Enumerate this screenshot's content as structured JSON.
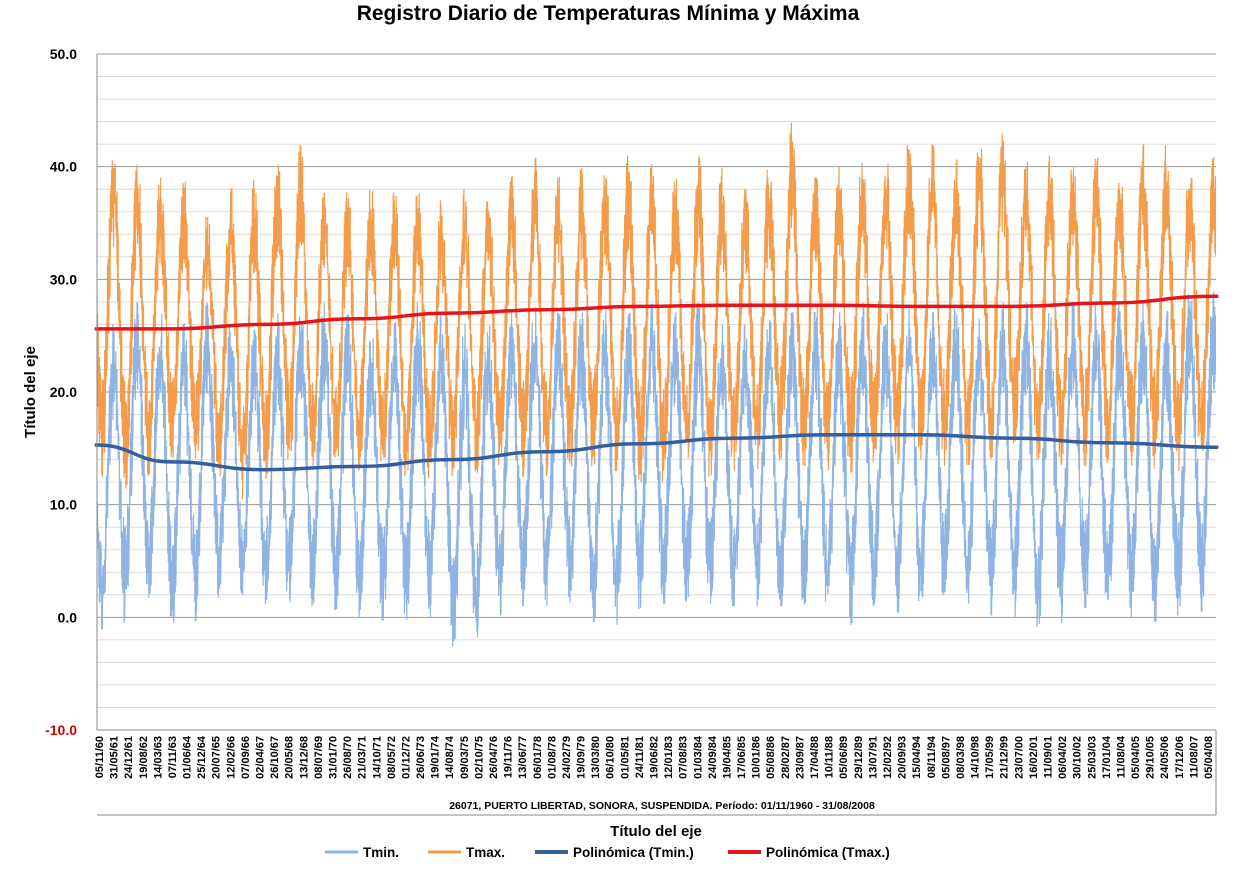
{
  "chart_data": {
    "type": "line",
    "title": "Registro Diario de Temperaturas Mínima y Máxima",
    "subtitle": "26071, PUERTO LIBERTAD, SONORA, SUSPENDIDA. Período: 01/11/1960 - 31/08/2008",
    "xlabel": "Título del eje",
    "ylabel": "Título del eje",
    "ylim": [
      -10,
      50
    ],
    "yticks": [
      "-10.0",
      "0.0",
      "10.0",
      "20.0",
      "30.0",
      "40.0",
      "50.0"
    ],
    "xlim": [
      "01/11/1960",
      "31/08/2008"
    ],
    "x_tick_labels": [
      "05/11/60",
      "31/05/61",
      "24/12/61",
      "19/08/62",
      "14/03/63",
      "07/11/63",
      "01/06/64",
      "25/12/64",
      "20/07/65",
      "12/02/66",
      "07/09/66",
      "02/04/67",
      "26/10/67",
      "20/05/68",
      "13/12/68",
      "08/07/69",
      "31/01/70",
      "26/08/70",
      "21/03/71",
      "14/10/71",
      "08/05/72",
      "01/12/72",
      "26/06/73",
      "19/01/74",
      "14/08/74",
      "09/03/75",
      "02/10/75",
      "26/04/76",
      "19/11/76",
      "13/06/77",
      "06/01/78",
      "01/08/78",
      "24/02/79",
      "19/09/79",
      "13/03/80",
      "06/10/80",
      "01/05/81",
      "24/11/81",
      "19/06/82",
      "12/01/83",
      "07/08/83",
      "01/03/84",
      "24/09/84",
      "19/04/85",
      "17/06/85",
      "10/01/86",
      "05/08/86",
      "28/02/87",
      "23/09/87",
      "17/04/88",
      "10/11/88",
      "05/06/89",
      "29/12/89",
      "13/07/91",
      "12/02/92",
      "20/09/93",
      "15/04/94",
      "08/11/94",
      "05/08/97",
      "08/03/98",
      "14/10/98",
      "17/05/99",
      "21/12/99",
      "23/07/00",
      "16/02/01",
      "11/09/01",
      "06/04/02",
      "30/10/02",
      "25/03/03",
      "17/01/04",
      "11/08/04",
      "05/04/05",
      "29/10/05",
      "24/05/06",
      "17/12/06",
      "11/08/07",
      "05/04/08"
    ],
    "grid": true,
    "legend_position": "bottom",
    "series": [
      {
        "name": "Tmin.",
        "color": "#8eb4e3",
        "kind": "daily",
        "seasonal_summary": {
          "summer_peak_max": [
            26,
            26,
            28,
            27,
            26,
            28,
            26,
            26,
            27,
            27,
            28,
            27,
            26,
            26,
            28,
            27,
            26,
            27,
            27,
            28,
            27,
            27,
            28,
            27,
            28,
            27,
            28,
            26,
            26,
            27,
            27,
            28,
            27,
            28,
            27,
            28,
            27,
            28,
            27,
            28,
            28,
            27,
            28,
            28,
            28,
            28,
            27,
            29
          ],
          "winter_trough_min": [
            0,
            -2,
            1,
            1,
            -2,
            1,
            1,
            1,
            0,
            2,
            0,
            0,
            0,
            -0.5,
            0,
            0,
            -6,
            -1,
            1,
            1,
            1,
            1,
            -1.5,
            0,
            1.5,
            1,
            0,
            1,
            1,
            1,
            1,
            1,
            -1.5,
            0,
            1,
            0,
            1,
            1,
            0,
            0,
            0,
            -2.5,
            1,
            -1,
            0,
            0,
            -1.5,
            0.5
          ]
        }
      },
      {
        "name": "Tmax.",
        "color": "#f59c4a",
        "kind": "daily",
        "seasonal_summary": {
          "summer_peak_max": [
            43,
            42,
            41,
            39,
            39,
            36,
            38,
            39,
            40,
            42,
            38,
            38,
            38,
            38,
            38,
            37,
            38,
            38,
            39,
            41,
            39,
            40,
            40,
            41,
            41,
            39,
            41,
            40,
            38,
            40,
            44,
            39,
            40,
            41,
            41,
            43,
            42,
            41,
            43,
            43,
            41,
            41,
            41,
            41,
            40,
            42,
            42,
            41
          ],
          "winter_trough_min": [
            13,
            12,
            11,
            14,
            14,
            13,
            12,
            9,
            14,
            12,
            14,
            12,
            14,
            12,
            13,
            11,
            14,
            12,
            13,
            12,
            13,
            13,
            13,
            12,
            11,
            13,
            12,
            13,
            13,
            13,
            14,
            13,
            12,
            13,
            13,
            14,
            14,
            13,
            13,
            15,
            15,
            13,
            14,
            13,
            14,
            13,
            13,
            13
          ]
        }
      },
      {
        "name": "Polinómica (Tmin.)",
        "color": "#355e9c",
        "kind": "trend",
        "years": [
          1960.8,
          1964,
          1968,
          1972,
          1976,
          1980,
          1984,
          1988,
          1992,
          1996,
          2000,
          2004,
          2008.7
        ],
        "values": [
          15.3,
          13.8,
          13.1,
          13.4,
          14.0,
          14.7,
          15.4,
          15.9,
          16.2,
          16.2,
          15.9,
          15.5,
          15.1
        ]
      },
      {
        "name": "Polinómica (Tmax.)",
        "color": "#e8141a",
        "kind": "trend",
        "years": [
          1960.8,
          1964,
          1968,
          1972,
          1976,
          1980,
          1984,
          1988,
          1992,
          1996,
          2000,
          2004,
          2008.7
        ],
        "values": [
          25.6,
          25.6,
          26.0,
          26.5,
          27.0,
          27.3,
          27.6,
          27.7,
          27.7,
          27.6,
          27.6,
          27.9,
          28.5
        ]
      }
    ]
  }
}
